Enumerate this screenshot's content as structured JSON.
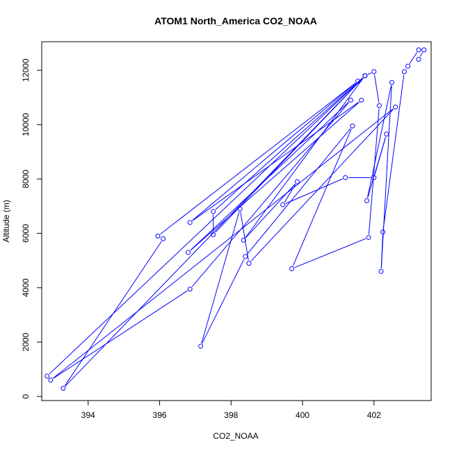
{
  "chart_data": {
    "type": "line",
    "title": "ATOM1 North_America CO2_NOAA",
    "xlabel": "CO2_NOAA",
    "ylabel": "Altitude (m)",
    "xlim": [
      392.7,
      403.6
    ],
    "ylim": [
      -150,
      13050
    ],
    "xticks": [
      394,
      396,
      398,
      400,
      402
    ],
    "yticks": [
      0,
      2000,
      4000,
      6000,
      8000,
      10000,
      12000
    ],
    "grid": false,
    "markers": "open-circle",
    "colors": {
      "series": "#0000ff",
      "axis": "#000000",
      "background": "#ffffff"
    },
    "series": [
      {
        "points": [
          [
            392.85,
            750
          ],
          [
            401.75,
            11800
          ],
          [
            402.0,
            11950
          ],
          [
            402.15,
            10700
          ],
          [
            401.85,
            5850
          ],
          [
            399.7,
            4700
          ],
          [
            401.4,
            9950
          ],
          [
            398.4,
            5150
          ],
          [
            397.15,
            1850
          ],
          [
            398.25,
            6900
          ],
          [
            398.5,
            4900
          ],
          [
            402.6,
            10650
          ],
          [
            392.95,
            600
          ],
          [
            396.85,
            3950
          ],
          [
            401.35,
            10900
          ],
          [
            396.8,
            5300
          ],
          [
            401.65,
            10900
          ],
          [
            396.85,
            6400
          ],
          [
            401.55,
            11600
          ],
          [
            395.95,
            5900
          ],
          [
            396.1,
            5800
          ],
          [
            393.3,
            300
          ],
          [
            401.75,
            11800
          ],
          [
            397.5,
            6800
          ],
          [
            397.5,
            5950
          ],
          [
            401.75,
            11800
          ],
          [
            398.35,
            5750
          ],
          [
            399.85,
            7900
          ],
          [
            399.45,
            7050
          ],
          [
            401.2,
            8050
          ],
          [
            402.0,
            8050
          ],
          [
            402.35,
            9650
          ],
          [
            401.8,
            7200
          ],
          [
            402.5,
            11550
          ],
          [
            402.2,
            4600
          ],
          [
            402.25,
            6050
          ],
          [
            402.85,
            11950
          ],
          [
            402.95,
            12150
          ],
          [
            403.25,
            12750
          ],
          [
            403.4,
            12750
          ],
          [
            403.25,
            12400
          ]
        ]
      }
    ]
  }
}
